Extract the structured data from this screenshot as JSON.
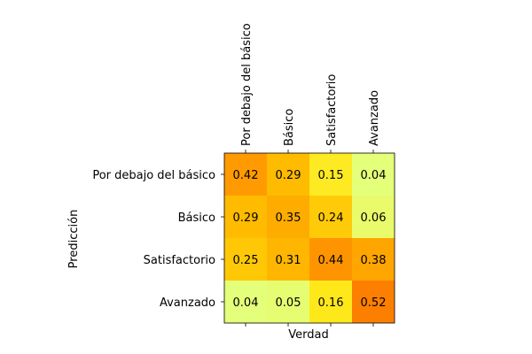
{
  "chart_data": {
    "type": "heatmap",
    "title": "",
    "xlabel": "Verdad",
    "ylabel": "Predicción",
    "x_categories": [
      "Por debajo del básico",
      "Básico",
      "Satisfactorio",
      "Avanzado"
    ],
    "y_categories": [
      "Por debajo del básico",
      "Básico",
      "Satisfactorio",
      "Avanzado"
    ],
    "values": [
      [
        0.42,
        0.29,
        0.15,
        0.04
      ],
      [
        0.29,
        0.35,
        0.24,
        0.06
      ],
      [
        0.25,
        0.31,
        0.44,
        0.38
      ],
      [
        0.04,
        0.05,
        0.16,
        0.52
      ]
    ],
    "value_labels": [
      [
        "0.42",
        "0.29",
        "0.15",
        "0.04"
      ],
      [
        "0.29",
        "0.35",
        "0.24",
        "0.06"
      ],
      [
        "0.25",
        "0.31",
        "0.44",
        "0.38"
      ],
      [
        "0.04",
        "0.05",
        "0.16",
        "0.52"
      ]
    ],
    "colormap": "Wistia",
    "color_range": [
      0.04,
      0.52
    ],
    "x_tick_position": "top",
    "grid": false,
    "legend": "none"
  }
}
